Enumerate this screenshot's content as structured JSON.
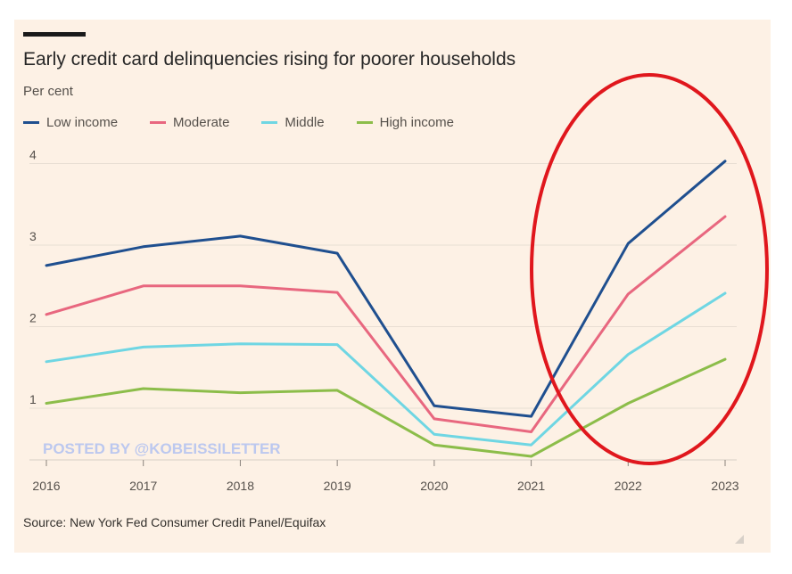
{
  "chart_data": {
    "type": "line",
    "title": "Early credit card delinquencies rising for poorer households",
    "ylabel": "Per cent",
    "x": [
      "2016",
      "2017",
      "2018",
      "2019",
      "2020",
      "2021",
      "2022",
      "2023"
    ],
    "yticks": [
      "1",
      "2",
      "3",
      "4"
    ],
    "ylim": [
      0.4,
      4.3
    ],
    "grid": true,
    "legend_placement": "top-left",
    "series": [
      {
        "name": "Low income",
        "color": "#1f4f8f",
        "values": [
          2.75,
          2.98,
          3.11,
          2.9,
          1.03,
          0.9,
          3.02,
          4.03
        ]
      },
      {
        "name": "Moderate",
        "color": "#e8677f",
        "values": [
          2.15,
          2.5,
          2.5,
          2.42,
          0.87,
          0.71,
          2.4,
          3.35
        ]
      },
      {
        "name": "Middle",
        "color": "#6fd6e3",
        "values": [
          1.57,
          1.75,
          1.79,
          1.78,
          0.68,
          0.55,
          1.66,
          2.41
        ]
      },
      {
        "name": "High income",
        "color": "#8cbd4a",
        "values": [
          1.06,
          1.24,
          1.19,
          1.22,
          0.55,
          0.41,
          1.06,
          1.6
        ]
      }
    ],
    "source": "Source: New York Fed Consumer Credit Panel/Equifax",
    "watermark": "POSTED BY @KOBEISSILETTER",
    "annotation_color": "#e0171d"
  }
}
